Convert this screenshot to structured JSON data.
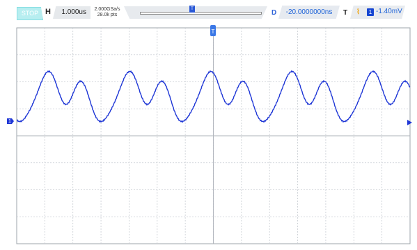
{
  "topbar": {
    "run_status": "STOP",
    "horizontal_label": "H",
    "timebase": "1.000us",
    "sample_rate": "2.000GSa/s",
    "memory_depth": "28.0k pts",
    "delay_label": "D",
    "delay_value": "-20.0000000ns",
    "trigger_label": "T",
    "trigger_channel": "1",
    "trigger_level": "-1.40mV",
    "trigger_marker_label": "T",
    "memory_marker_label": "T"
  },
  "screen": {
    "channel_marker": "1",
    "trace_color": "#1f37d6",
    "grid_color": "#c8ccd2",
    "background_color": "#ffffff"
  }
}
